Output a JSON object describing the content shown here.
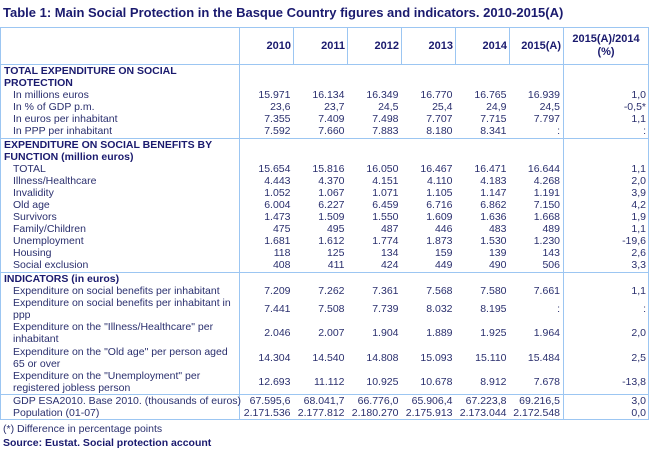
{
  "title": "Table 1: Main Social Protection in the Basque Country figures  and indicators. 2010-2015(A)",
  "columns": [
    "2010",
    "2011",
    "2012",
    "2013",
    "2014",
    "2015(A)",
    "2015(A)/2014 (%)"
  ],
  "sections": [
    {
      "heading": "TOTAL EXPENDITURE ON SOCIAL PROTECTION",
      "rows": [
        {
          "label": "In millions euros",
          "values": [
            "15.971",
            "16.134",
            "16.349",
            "16.770",
            "16.765",
            "16.939"
          ],
          "change": "1,0"
        },
        {
          "label": "In % of GDP p.m.",
          "values": [
            "23,6",
            "23,7",
            "24,5",
            "25,4",
            "24,9",
            "24,5"
          ],
          "change": "-0,5*"
        },
        {
          "label": "In euros per inhabitant",
          "values": [
            "7.355",
            "7.409",
            "7.498",
            "7.707",
            "7.715",
            "7.797"
          ],
          "change": "1,1"
        },
        {
          "label": "In PPP per inhabitant",
          "values": [
            "7.592",
            "7.660",
            "7.883",
            "8.180",
            "8.341",
            ":"
          ],
          "change": ":"
        }
      ]
    },
    {
      "heading": "EXPENDITURE ON SOCIAL BENEFITS BY FUNCTION (million euros)",
      "rows": [
        {
          "label": "TOTAL",
          "values": [
            "15.654",
            "15.816",
            "16.050",
            "16.467",
            "16.471",
            "16.644"
          ],
          "change": "1,1"
        },
        {
          "label": "Illness/Healthcare",
          "values": [
            "4.443",
            "4.370",
            "4.151",
            "4.110",
            "4.183",
            "4.268"
          ],
          "change": "2,0"
        },
        {
          "label": "Invalidity",
          "values": [
            "1.052",
            "1.067",
            "1.071",
            "1.105",
            "1.147",
            "1.191"
          ],
          "change": "3,9"
        },
        {
          "label": "Old age",
          "values": [
            "6.004",
            "6.227",
            "6.459",
            "6.716",
            "6.862",
            "7.150"
          ],
          "change": "4,2"
        },
        {
          "label": "Survivors",
          "values": [
            "1.473",
            "1.509",
            "1.550",
            "1.609",
            "1.636",
            "1.668"
          ],
          "change": "1,9"
        },
        {
          "label": "Family/Children",
          "values": [
            "475",
            "495",
            "487",
            "446",
            "483",
            "489"
          ],
          "change": "1,1"
        },
        {
          "label": "Unemployment",
          "values": [
            "1.681",
            "1.612",
            "1.774",
            "1.873",
            "1.530",
            "1.230"
          ],
          "change": "-19,6"
        },
        {
          "label": "Housing",
          "values": [
            "118",
            "125",
            "134",
            "159",
            "139",
            "143"
          ],
          "change": "2,6"
        },
        {
          "label": "Social exclusion",
          "values": [
            "408",
            "411",
            "424",
            "449",
            "490",
            "506"
          ],
          "change": "3,3"
        }
      ]
    },
    {
      "heading": "INDICATORS (in euros)",
      "rows": [
        {
          "label": "Expenditure on social benefits per inhabitant",
          "values": [
            "7.209",
            "7.262",
            "7.361",
            "7.568",
            "7.580",
            "7.661"
          ],
          "change": "1,1"
        },
        {
          "label": "Expenditure on social benefits per inhabitant in ppp",
          "values": [
            "7.441",
            "7.508",
            "7.739",
            "8.032",
            "8.195",
            ":"
          ],
          "change": ":"
        },
        {
          "label": "Expenditure on the \"Illness/Healthcare\" per inhabitant",
          "values": [
            "2.046",
            "2.007",
            "1.904",
            "1.889",
            "1.925",
            "1.964"
          ],
          "change": "2,0"
        },
        {
          "label": "Expenditure on the \"Old age\" per person aged 65 or over",
          "values": [
            "14.304",
            "14.540",
            "14.808",
            "15.093",
            "15.110",
            "15.484"
          ],
          "change": "2,5"
        },
        {
          "label": "Expenditure on the \"Unemployment\" per registered jobless person",
          "values": [
            "12.693",
            "11.112",
            "10.925",
            "10.678",
            "8.912",
            "7.678"
          ],
          "change": "-13,8"
        }
      ]
    },
    {
      "heading": "",
      "rows": [
        {
          "label": "GDP ESA2010. Base 2010. (thousands of euros)",
          "values": [
            "67.595,6",
            "68.041,7",
            "66.776,0",
            "65.906,4",
            "67.223,8",
            "69.216,5"
          ],
          "change": "3,0"
        },
        {
          "label": "Population (01-07)",
          "values": [
            "2.171.536",
            "2.177.812",
            "2.180.270",
            "2.175.913",
            "2.173.044",
            "2.172.548"
          ],
          "change": "0,0"
        }
      ]
    }
  ],
  "footnote": "(*) Difference in percentage points",
  "source": "Source: Eustat. Social protection account",
  "colors": {
    "title": "#1a1a6e",
    "text": "#2a2f6e",
    "border": "#9cc6f2"
  }
}
